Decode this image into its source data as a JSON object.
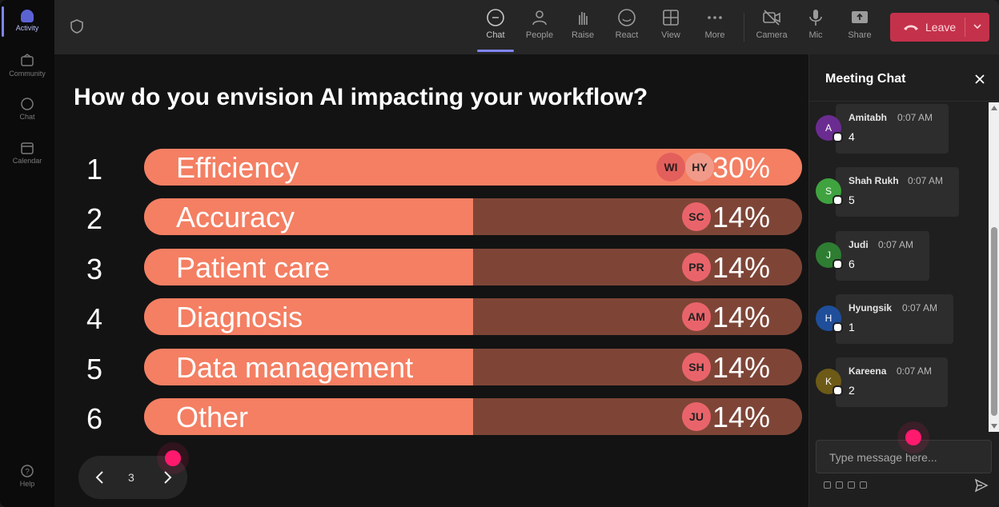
{
  "rail": {
    "items": [
      {
        "label": "Activity",
        "icon": "bell-icon"
      },
      {
        "label": "Community",
        "icon": "community-icon"
      },
      {
        "label": "Chat",
        "icon": "chat-icon"
      },
      {
        "label": "Calendar",
        "icon": "calendar-icon"
      }
    ],
    "help": {
      "label": "Help",
      "icon": "help-icon"
    }
  },
  "toolbar": {
    "items": [
      {
        "label": "Chat",
        "icon": "chat-icon"
      },
      {
        "label": "People",
        "icon": "people-icon"
      },
      {
        "label": "Raise",
        "icon": "raise-hand-icon"
      },
      {
        "label": "React",
        "icon": "react-icon"
      },
      {
        "label": "View",
        "icon": "view-icon"
      },
      {
        "label": "More",
        "icon": "more-icon"
      },
      {
        "label": "Camera",
        "icon": "camera-off-icon"
      },
      {
        "label": "Mic",
        "icon": "mic-icon"
      },
      {
        "label": "Share",
        "icon": "share-icon"
      }
    ],
    "leave_label": "Leave"
  },
  "poll": {
    "question": "How do you envision AI impacting your workflow?",
    "options": [
      {
        "num": "1",
        "label": "Efficiency",
        "percent": "30%",
        "value": 30,
        "avatars": [
          "WI",
          "HY"
        ]
      },
      {
        "num": "2",
        "label": "Accuracy",
        "percent": "14%",
        "value": 14,
        "avatars": [
          "SC"
        ]
      },
      {
        "num": "3",
        "label": "Patient care",
        "percent": "14%",
        "value": 14,
        "avatars": [
          "PR"
        ]
      },
      {
        "num": "4",
        "label": "Diagnosis",
        "percent": "14%",
        "value": 14,
        "avatars": [
          "AM"
        ]
      },
      {
        "num": "5",
        "label": "Data management",
        "percent": "14%",
        "value": 14,
        "avatars": [
          "SH"
        ]
      },
      {
        "num": "6",
        "label": "Other",
        "percent": "14%",
        "value": 14,
        "avatars": [
          "JU"
        ]
      }
    ],
    "page": "3"
  },
  "chat": {
    "title": "Meeting Chat",
    "messages": [
      {
        "initial": "A",
        "name": "Amitabh",
        "time": "0:07 AM",
        "text": "4",
        "color": "#6b2c91"
      },
      {
        "initial": "S",
        "name": "Shah Rukh",
        "time": "0:07 AM",
        "text": "5",
        "color": "#3fa33f"
      },
      {
        "initial": "J",
        "name": "Judi",
        "time": "0:07 AM",
        "text": "6",
        "color": "#2e7d32"
      },
      {
        "initial": "H",
        "name": "Hyungsik",
        "time": "0:07 AM",
        "text": "1",
        "color": "#1f4e9a"
      },
      {
        "initial": "K",
        "name": "Kareena",
        "time": "0:07 AM",
        "text": "2",
        "color": "#6d5a17"
      }
    ],
    "compose_placeholder": "Type message here..."
  },
  "colors": {
    "bar_fill": "#f47f63",
    "bar_track": "#7e4537",
    "leave": "#c4314b",
    "accent": "#7f85f5",
    "pointer": "#ff1a6e"
  }
}
